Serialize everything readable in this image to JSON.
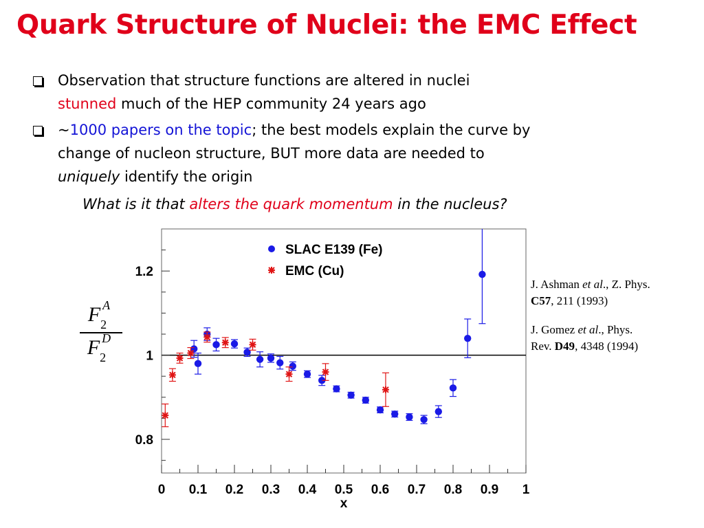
{
  "slide": {
    "title": "Quark Structure of Nuclei: the EMC Effect",
    "bullet1": {
      "line1": "Observation that structure functions are altered in nuclei",
      "line2_red": "stunned",
      "line2_rest": " much of the HEP community 24 years ago"
    },
    "bullet2": {
      "prefix": "~",
      "blue": "1000 papers on the topic",
      "line1_rest": "; the best models explain the curve by",
      "line2": "change of nucleon structure, BUT more data are needed to",
      "line3_it": "uniquely",
      "line3_rest": " identify the origin"
    },
    "question": {
      "part1": "What is it that ",
      "part2_red": "alters the quark momentum",
      "part3": " in the nucleus?"
    },
    "ylabel": {
      "num_letter": "F",
      "num_sub": "2",
      "num_sup": "A",
      "den_letter": "F",
      "den_sub": "2",
      "den_sup": "D"
    },
    "refs": {
      "r1_a": "J. Ashman ",
      "r1_etal": "et al",
      "r1_b": "., Z. Phys.",
      "r1_vol": "C57",
      "r1_c": ", 211 (1993)",
      "r2_a": "J. Gomez ",
      "r2_etal": "et al",
      "r2_b": "., Phys.",
      "r2_c": "Rev. ",
      "r2_vol": "D49",
      "r2_d": ", 4348 (1994)"
    }
  },
  "chart_data": {
    "type": "scatter",
    "xlabel": "x",
    "ylabel": "F2A/F2D",
    "xlim": [
      0,
      1
    ],
    "ylim": [
      0.72,
      1.3
    ],
    "xticks": [
      "0",
      "0.1",
      "0.2",
      "0.3",
      "0.4",
      "0.5",
      "0.6",
      "0.7",
      "0.8",
      "0.9",
      "1"
    ],
    "yticks": [
      "0.8",
      "1",
      "1.2"
    ],
    "reference_line": 1.0,
    "legend_position": "top-center",
    "colors": {
      "slac": "#1a1ae6",
      "emc": "#e01414",
      "axis": "#000000"
    },
    "series": [
      {
        "name": "SLAC E139 (Fe)",
        "marker": "circle",
        "points": [
          {
            "x": 0.089,
            "y": 1.015,
            "err": 0.02
          },
          {
            "x": 0.1,
            "y": 0.98,
            "err": 0.025
          },
          {
            "x": 0.125,
            "y": 1.05,
            "err": 0.015
          },
          {
            "x": 0.15,
            "y": 1.025,
            "err": 0.015
          },
          {
            "x": 0.2,
            "y": 1.027,
            "err": 0.01
          },
          {
            "x": 0.235,
            "y": 1.007,
            "err": 0.01
          },
          {
            "x": 0.27,
            "y": 0.99,
            "err": 0.018
          },
          {
            "x": 0.3,
            "y": 0.993,
            "err": 0.01
          },
          {
            "x": 0.325,
            "y": 0.982,
            "err": 0.015
          },
          {
            "x": 0.36,
            "y": 0.974,
            "err": 0.01
          },
          {
            "x": 0.4,
            "y": 0.955,
            "err": 0.008
          },
          {
            "x": 0.44,
            "y": 0.94,
            "err": 0.012
          },
          {
            "x": 0.48,
            "y": 0.92,
            "err": 0.007
          },
          {
            "x": 0.52,
            "y": 0.905,
            "err": 0.007
          },
          {
            "x": 0.56,
            "y": 0.893,
            "err": 0.007
          },
          {
            "x": 0.6,
            "y": 0.87,
            "err": 0.007
          },
          {
            "x": 0.64,
            "y": 0.86,
            "err": 0.007
          },
          {
            "x": 0.68,
            "y": 0.853,
            "err": 0.008
          },
          {
            "x": 0.72,
            "y": 0.847,
            "err": 0.01
          },
          {
            "x": 0.76,
            "y": 0.866,
            "err": 0.014
          },
          {
            "x": 0.8,
            "y": 0.922,
            "err": 0.02
          },
          {
            "x": 0.84,
            "y": 1.04,
            "err": 0.046
          },
          {
            "x": 0.88,
            "y": 1.192,
            "err": 0.117
          }
        ]
      },
      {
        "name": "EMC (Cu)",
        "marker": "star",
        "points": [
          {
            "x": 0.01,
            "y": 0.857,
            "err": 0.027
          },
          {
            "x": 0.03,
            "y": 0.953,
            "err": 0.015
          },
          {
            "x": 0.05,
            "y": 0.993,
            "err": 0.012
          },
          {
            "x": 0.08,
            "y": 1.005,
            "err": 0.013
          },
          {
            "x": 0.125,
            "y": 1.043,
            "err": 0.012
          },
          {
            "x": 0.175,
            "y": 1.03,
            "err": 0.012
          },
          {
            "x": 0.25,
            "y": 1.025,
            "err": 0.013
          },
          {
            "x": 0.35,
            "y": 0.955,
            "err": 0.017
          },
          {
            "x": 0.45,
            "y": 0.96,
            "err": 0.02
          },
          {
            "x": 0.615,
            "y": 0.918,
            "err": 0.04
          }
        ]
      }
    ]
  }
}
